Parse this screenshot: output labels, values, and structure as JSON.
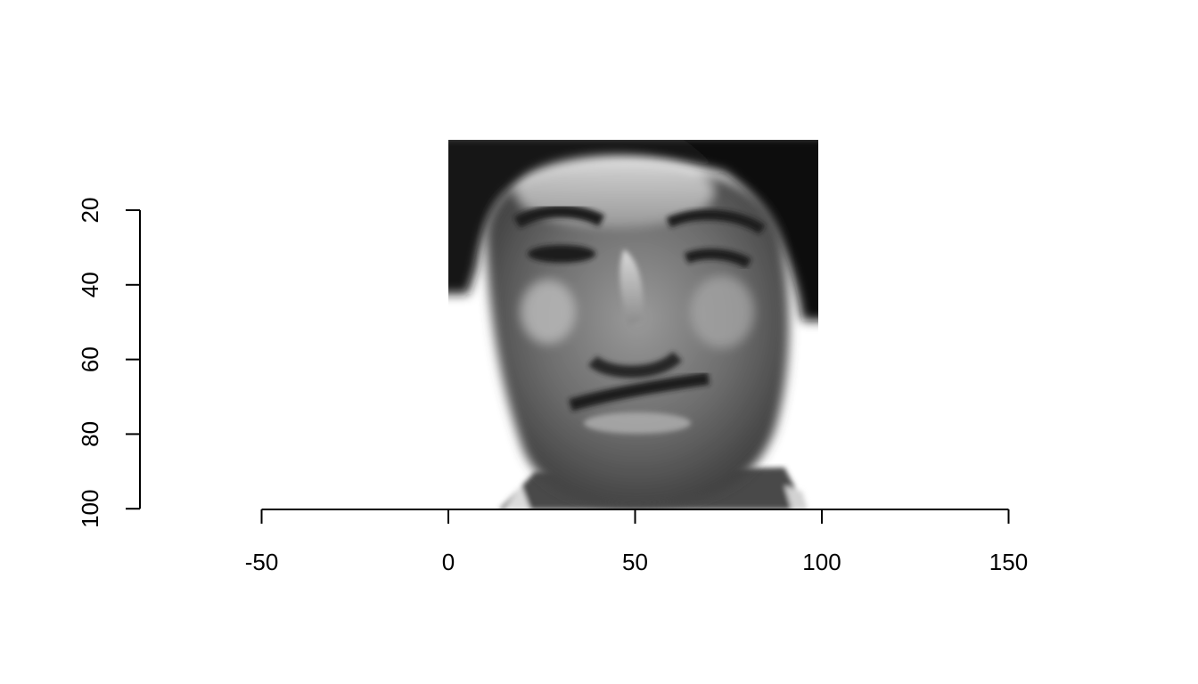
{
  "chart_data": {
    "type": "heatmap",
    "title": "",
    "xlabel": "",
    "ylabel": "",
    "image": {
      "content": "grayscale face photograph",
      "x_extent": [
        0,
        100
      ],
      "y_extent": [
        0,
        100
      ],
      "y_axis_reversed": true
    },
    "x_axis": {
      "lim": [
        -50,
        150
      ],
      "ticks": [
        -50,
        0,
        50,
        100,
        150
      ],
      "tick_labels": [
        "-50",
        "0",
        "50",
        "100",
        "150"
      ]
    },
    "y_axis": {
      "lim": [
        20,
        100
      ],
      "ticks": [
        20,
        40,
        60,
        80,
        100
      ],
      "tick_labels": [
        "20",
        "40",
        "60",
        "80",
        "100"
      ]
    },
    "grid": false,
    "legend": "none"
  }
}
